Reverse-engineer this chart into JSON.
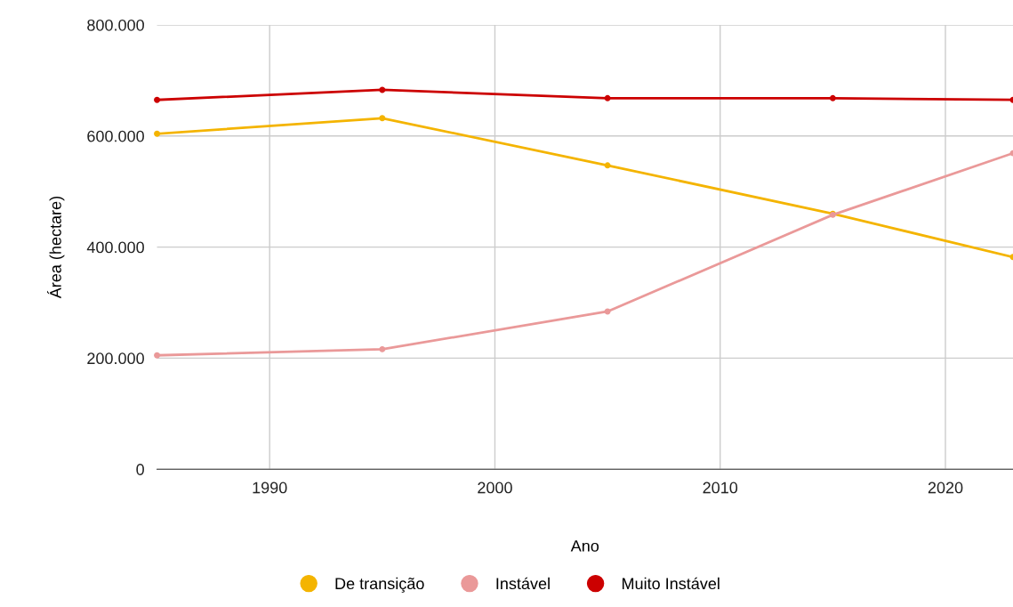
{
  "chart_data": {
    "type": "line",
    "xlabel": "Ano",
    "ylabel": "Área (hectare)",
    "x": [
      1985,
      1995,
      2005,
      2015,
      2023
    ],
    "series": [
      {
        "name": "De transição",
        "color": "#f4b400",
        "values": [
          604000,
          632000,
          547000,
          460000,
          382000
        ]
      },
      {
        "name": "Instável",
        "color": "#ea9999",
        "values": [
          205000,
          216000,
          284000,
          458000,
          569000
        ]
      },
      {
        "name": "Muito Instável",
        "color": "#cc0000",
        "values": [
          665000,
          683000,
          668000,
          668000,
          665000
        ]
      }
    ],
    "xlim": [
      1985,
      2023
    ],
    "xticks": [
      1990,
      2000,
      2010,
      2020
    ],
    "ylim": [
      0,
      800000
    ],
    "yticks": [
      {
        "value": 0,
        "label": "0"
      },
      {
        "value": 200000,
        "label": "200.000"
      },
      {
        "value": 400000,
        "label": "400.000"
      },
      {
        "value": 600000,
        "label": "600.000"
      },
      {
        "value": 800000,
        "label": "800.000"
      }
    ],
    "grid": true,
    "legend": "bottom",
    "marker": "circle",
    "line_style": "solid"
  }
}
